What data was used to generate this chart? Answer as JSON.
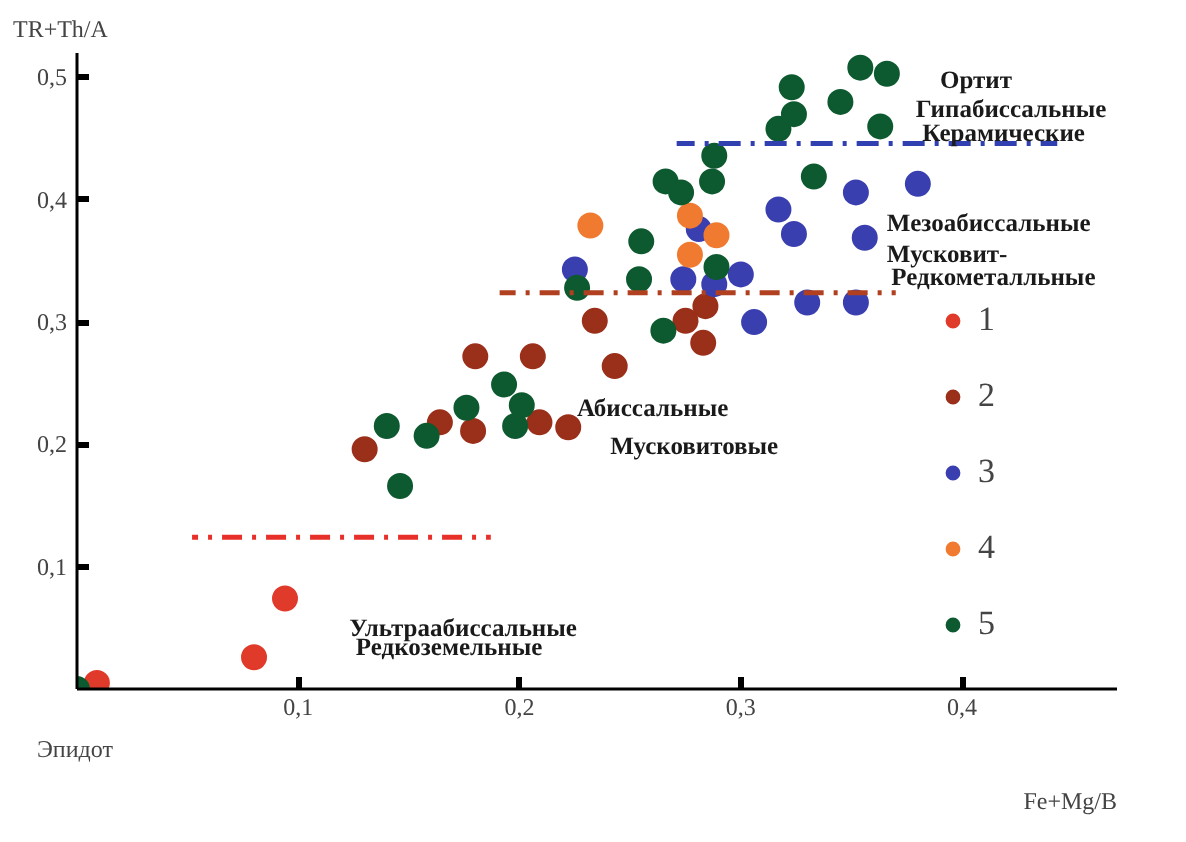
{
  "chart_data": {
    "type": "scatter",
    "xlabel": "Fe+Mg/B",
    "ylabel": "TR+Th/A",
    "xlim": [
      0,
      0.47
    ],
    "ylim": [
      0,
      0.52
    ],
    "xticks": [
      {
        "value": 0.1,
        "label": "0,1"
      },
      {
        "value": 0.2,
        "label": "0,2"
      },
      {
        "value": 0.3,
        "label": "0,3"
      },
      {
        "value": 0.4,
        "label": "0,4"
      }
    ],
    "yticks": [
      {
        "value": 0.1,
        "label": "0,1"
      },
      {
        "value": 0.2,
        "label": "0,2"
      },
      {
        "value": 0.3,
        "label": "0,3"
      },
      {
        "value": 0.4,
        "label": "0,4"
      },
      {
        "value": 0.5,
        "label": "0,5"
      }
    ],
    "grid": false,
    "legend": "right",
    "marker": "circle",
    "series": [
      {
        "name": "1",
        "color": "#e03a2a",
        "x": [
          0.009,
          0.08,
          0.094
        ],
        "values": [
          0.005,
          0.026,
          0.074
        ]
      },
      {
        "name": "2",
        "color": "#9a2f1a",
        "x": [
          0.13,
          0.164,
          0.179,
          0.18,
          0.206,
          0.209,
          0.222,
          0.243,
          0.234,
          0.275,
          0.284,
          0.283
        ],
        "values": [
          0.196,
          0.218,
          0.211,
          0.272,
          0.272,
          0.218,
          0.214,
          0.264,
          0.301,
          0.301,
          0.313,
          0.283
        ]
      },
      {
        "name": "3",
        "color": "#3a3fb0",
        "x": [
          0.225,
          0.274,
          0.281,
          0.288,
          0.3,
          0.306,
          0.317,
          0.324,
          0.33,
          0.352,
          0.352,
          0.356,
          0.38
        ],
        "values": [
          0.343,
          0.335,
          0.376,
          0.331,
          0.339,
          0.3,
          0.392,
          0.372,
          0.316,
          0.316,
          0.406,
          0.369,
          0.413
        ]
      },
      {
        "name": "4",
        "color": "#f07a30",
        "x": [
          0.232,
          0.277,
          0.289,
          0.277
        ],
        "values": [
          0.379,
          0.387,
          0.371,
          0.355
        ]
      },
      {
        "name": "5",
        "color": "#0e5a30",
        "x": [
          0,
          0.14,
          0.146,
          0.158,
          0.176,
          0.193,
          0.201,
          0.198,
          0.226,
          0.255,
          0.254,
          0.265,
          0.266,
          0.273,
          0.287,
          0.288,
          0.289,
          0.333,
          0.317,
          0.324,
          0.323,
          0.345,
          0.363,
          0.354,
          0.366
        ],
        "values": [
          0,
          0.215,
          0.166,
          0.207,
          0.23,
          0.249,
          0.232,
          0.215,
          0.328,
          0.366,
          0.335,
          0.293,
          0.415,
          0.406,
          0.415,
          0.436,
          0.345,
          0.419,
          0.458,
          0.47,
          0.492,
          0.48,
          0.46,
          0.508,
          0.503
        ]
      },
      {
        "type": "line",
        "marker": "none",
        "color": "#e8302a",
        "line_style": "dashed",
        "x": [
          0.052,
          0.187
        ],
        "values": [
          0.124,
          0.124
        ]
      },
      {
        "type": "line",
        "marker": "none",
        "color": "#b04020",
        "line_style": "dashed",
        "x": [
          0.191,
          0.37
        ],
        "values": [
          0.324,
          0.324
        ]
      },
      {
        "type": "line",
        "marker": "none",
        "color": "#3040b0",
        "line_style": "dashed",
        "x": [
          0.271,
          0.443
        ],
        "values": [
          0.446,
          0.446
        ]
      }
    ],
    "annotations": [
      "Эпидот",
      "Ортит",
      "Гипабиссальные",
      "Керамические",
      "Мезоабиссальные",
      "Мусковит-",
      "Редкометалльные",
      "Абиссальные",
      "Мусковитовые",
      "Ультраабиссальные",
      "Редкоземельные"
    ]
  }
}
